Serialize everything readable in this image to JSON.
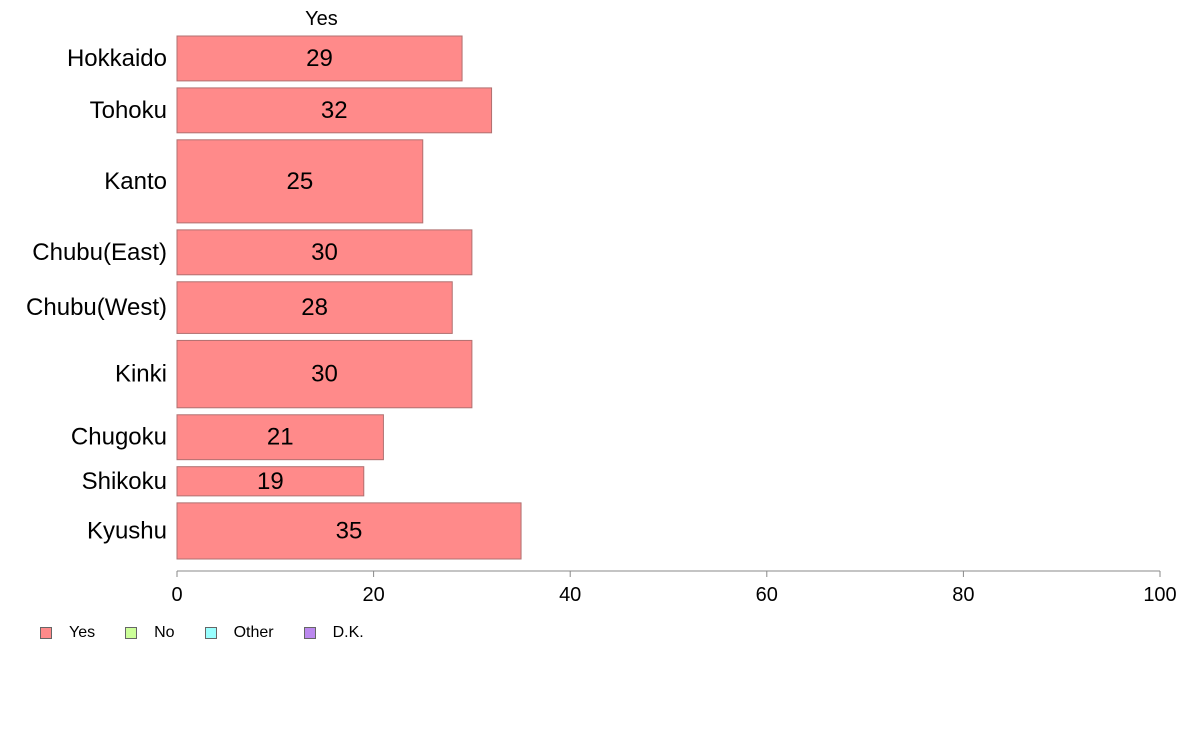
{
  "chart_data": {
    "type": "bar",
    "orientation": "horizontal",
    "series_title": "Yes",
    "categories": [
      "Hokkaido",
      "Tohoku",
      "Kanto",
      "Chubu(East)",
      "Chubu(West)",
      "Kinki",
      "Chugoku",
      "Shikoku",
      "Kyushu"
    ],
    "values": [
      29,
      32,
      25,
      30,
      28,
      30,
      21,
      19,
      35
    ],
    "value_labels": [
      "29",
      "32",
      "25",
      "30",
      "28",
      "30",
      "21",
      "19",
      "35"
    ],
    "relative_widths": [
      1.0,
      1.0,
      1.85,
      1.0,
      1.15,
      1.5,
      1.0,
      0.65,
      1.25
    ],
    "xlim": [
      0,
      100
    ],
    "xticks": [
      0,
      20,
      40,
      60,
      80,
      100
    ],
    "xtick_labels": [
      "0",
      "20",
      "40",
      "60",
      "80",
      "100"
    ],
    "legend_position": "bottom-left",
    "legend": [
      {
        "label": "Yes",
        "color": "#ff8a8a"
      },
      {
        "label": "No",
        "color": "#ccff99"
      },
      {
        "label": "Other",
        "color": "#99ffff"
      },
      {
        "label": "D.K.",
        "color": "#bb88ee"
      }
    ],
    "bar_color": "#ff8a8a",
    "bar_stroke": "#b07070"
  }
}
